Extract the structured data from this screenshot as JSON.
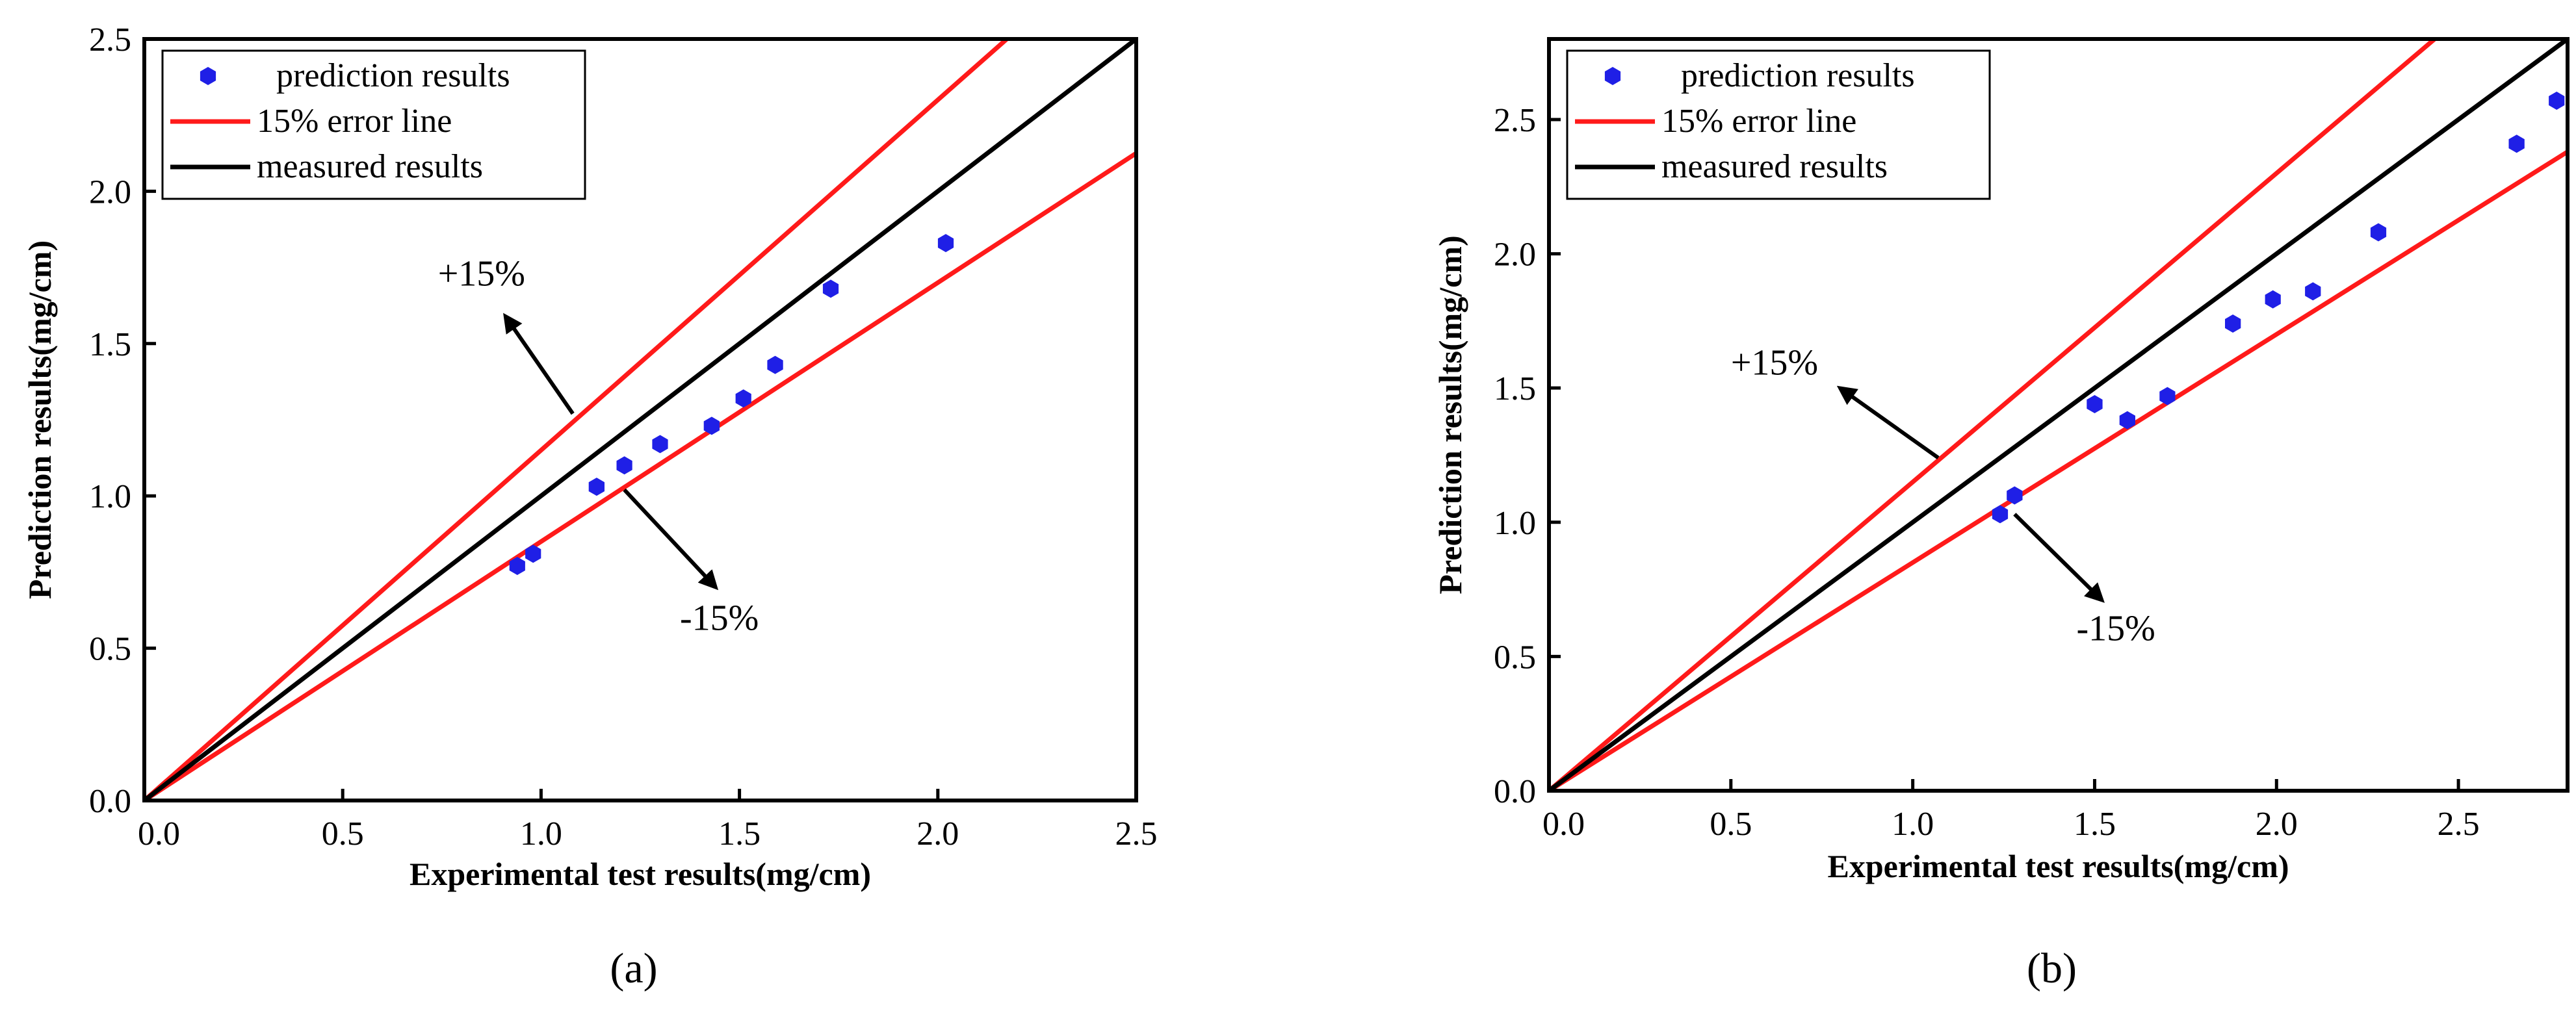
{
  "chart_data": [
    {
      "panel": "a",
      "caption": "(a)",
      "type": "scatter",
      "xlabel": "Experimental test results(mg/cm)",
      "ylabel": "Prediction results(mg/cm)",
      "xlim": [
        0,
        2.5
      ],
      "ylim": [
        0,
        2.5
      ],
      "xticks": [
        "0.0",
        "0.5",
        "1.0",
        "1.5",
        "2.0",
        "2.5"
      ],
      "yticks": [
        "0.0",
        "0.5",
        "1.0",
        "1.5",
        "2.0",
        "2.5"
      ],
      "legend": {
        "position": "top-left",
        "entries": [
          "prediction results",
          "15% error line",
          "measured results"
        ]
      },
      "series": [
        {
          "name": "prediction results",
          "kind": "points",
          "color": "#1f1fe6",
          "x": [
            0.94,
            0.98,
            1.14,
            1.21,
            1.3,
            1.43,
            1.51,
            1.59,
            1.73,
            2.02
          ],
          "y": [
            0.77,
            0.81,
            1.03,
            1.1,
            1.17,
            1.23,
            1.32,
            1.43,
            1.68,
            1.83
          ]
        },
        {
          "name": "15% error line",
          "kind": "line",
          "color": "#ff1a1a",
          "slope": 1.15
        },
        {
          "name": "15% error line",
          "kind": "line",
          "color": "#ff1a1a",
          "slope": 0.85
        },
        {
          "name": "measured results",
          "kind": "line",
          "color": "#000000",
          "slope": 1.0
        }
      ],
      "annotations": [
        {
          "text": "+15%",
          "x": 0.74,
          "y": 1.69,
          "arrow_from": [
            1.08,
            1.27
          ],
          "arrow_to": [
            0.91,
            1.59
          ]
        },
        {
          "text": "-15%",
          "x": 1.35,
          "y": 0.56,
          "arrow_from": [
            1.21,
            1.02
          ],
          "arrow_to": [
            1.44,
            0.7
          ]
        }
      ]
    },
    {
      "panel": "b",
      "caption": "(b)",
      "type": "scatter",
      "xlabel": "Experimental test results(mg/cm)",
      "ylabel": "Prediction results(mg/cm)",
      "xlim": [
        0,
        2.8
      ],
      "ylim": [
        0,
        2.8
      ],
      "xticks": [
        "0.0",
        "0.5",
        "1.0",
        "1.5",
        "2.0",
        "2.5"
      ],
      "yticks": [
        "0.0",
        "0.5",
        "1.0",
        "1.5",
        "2.0",
        "2.5"
      ],
      "legend": {
        "position": "top-left",
        "entries": [
          "prediction results",
          "15% error line",
          "measured results"
        ]
      },
      "series": [
        {
          "name": "prediction results",
          "kind": "points",
          "color": "#1f1fe6",
          "x": [
            1.24,
            1.28,
            1.5,
            1.59,
            1.7,
            1.88,
            1.99,
            2.1,
            2.28,
            2.66,
            2.77
          ],
          "y": [
            1.03,
            1.1,
            1.44,
            1.38,
            1.47,
            1.74,
            1.83,
            1.86,
            2.08,
            2.41,
            2.57
          ]
        },
        {
          "name": "15% error line",
          "kind": "line",
          "color": "#ff1a1a",
          "slope": 1.15
        },
        {
          "name": "15% error line",
          "kind": "line",
          "color": "#ff1a1a",
          "slope": 0.85
        },
        {
          "name": "measured results",
          "kind": "line",
          "color": "#000000",
          "slope": 1.0
        }
      ],
      "annotations": [
        {
          "text": "+15%",
          "x": 0.5,
          "y": 1.55,
          "arrow_from": [
            1.07,
            1.24
          ],
          "arrow_to": [
            0.8,
            1.5
          ]
        },
        {
          "text": "-15%",
          "x": 1.45,
          "y": 0.56,
          "arrow_from": [
            1.28,
            1.03
          ],
          "arrow_to": [
            1.52,
            0.71
          ]
        }
      ]
    }
  ]
}
